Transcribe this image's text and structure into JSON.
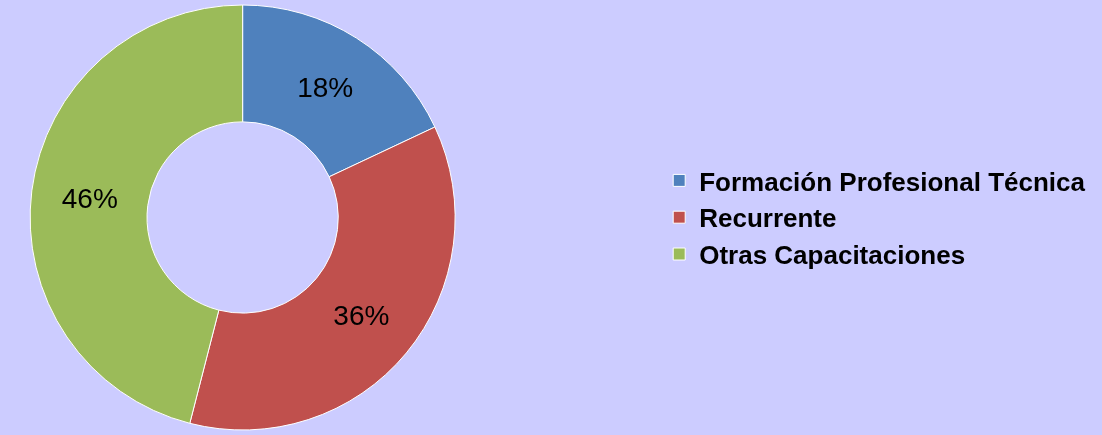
{
  "chart_data": {
    "type": "donut",
    "categories": [
      "Formación Profesional Técnica",
      "Recurrente",
      "Otras Capacitaciones"
    ],
    "values": [
      18,
      36,
      46
    ],
    "value_labels": [
      "18%",
      "36%",
      "46%"
    ],
    "colors": [
      "#4f81bd",
      "#c0504d",
      "#9bbb59"
    ],
    "legend": "right"
  }
}
